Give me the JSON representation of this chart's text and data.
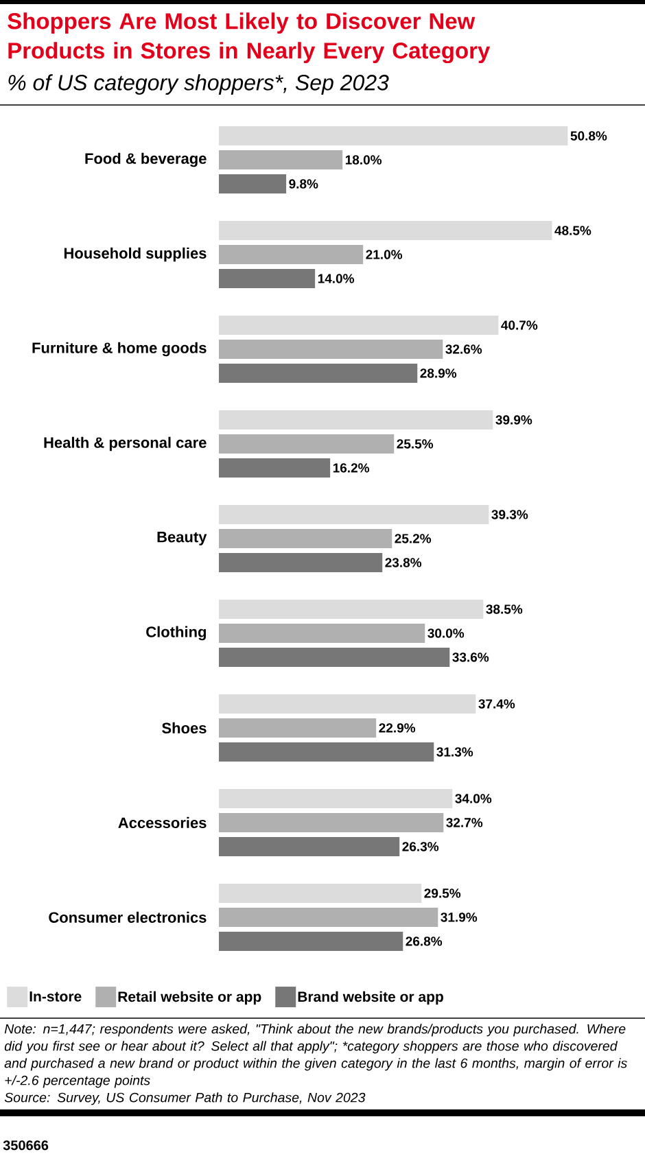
{
  "chart_data": {
    "type": "bar",
    "orientation": "horizontal",
    "title": "Shoppers Are Most Likely to Discover New Products in Stores in Nearly Every Category",
    "subtitle": "% of US category shoppers*, Sep 2023",
    "categories": [
      "Food & beverage",
      "Household supplies",
      "Furniture & home goods",
      "Health & personal care",
      "Beauty",
      "Clothing",
      "Shoes",
      "Accessories",
      "Consumer electronics"
    ],
    "series": [
      {
        "name": "In-store",
        "color": "#dcdcdc",
        "values": [
          50.8,
          48.5,
          40.7,
          39.9,
          39.3,
          38.5,
          37.4,
          34.0,
          29.5
        ],
        "value_labels": [
          "50.8%",
          "48.5%",
          "40.7%",
          "39.9%",
          "39.3%",
          "38.5%",
          "37.4%",
          "34.0%",
          "29.5%"
        ]
      },
      {
        "name": "Retail website or app",
        "color": "#b0b0b0",
        "values": [
          18.0,
          21.0,
          32.6,
          25.5,
          25.2,
          30.0,
          22.9,
          32.7,
          31.9
        ],
        "value_labels": [
          "18.0%",
          "21.0%",
          "32.6%",
          "25.5%",
          "25.2%",
          "30.0%",
          "22.9%",
          "32.7%",
          "31.9%"
        ]
      },
      {
        "name": "Brand website or app",
        "color": "#777777",
        "values": [
          9.8,
          14.0,
          28.9,
          16.2,
          23.8,
          33.6,
          31.3,
          26.3,
          26.8
        ],
        "value_labels": [
          "9.8%",
          "14.0%",
          "28.9%",
          "16.2%",
          "23.8%",
          "33.6%",
          "31.3%",
          "26.3%",
          "26.8%"
        ]
      }
    ],
    "legend": "bottom",
    "annotations": [
      "Note: n=1,447; respondents were asked, \"Think about the new brands/products you purchased. Where did you first see or hear about it? Select all that apply\"; *category shoppers are those who discovered and purchased a new brand or product within the given category in the last 6 months, margin of error is +/-2.6 percentage points",
      "Source: Survey, US Consumer Path to Purchase, Nov 2023",
      "350666"
    ]
  }
}
